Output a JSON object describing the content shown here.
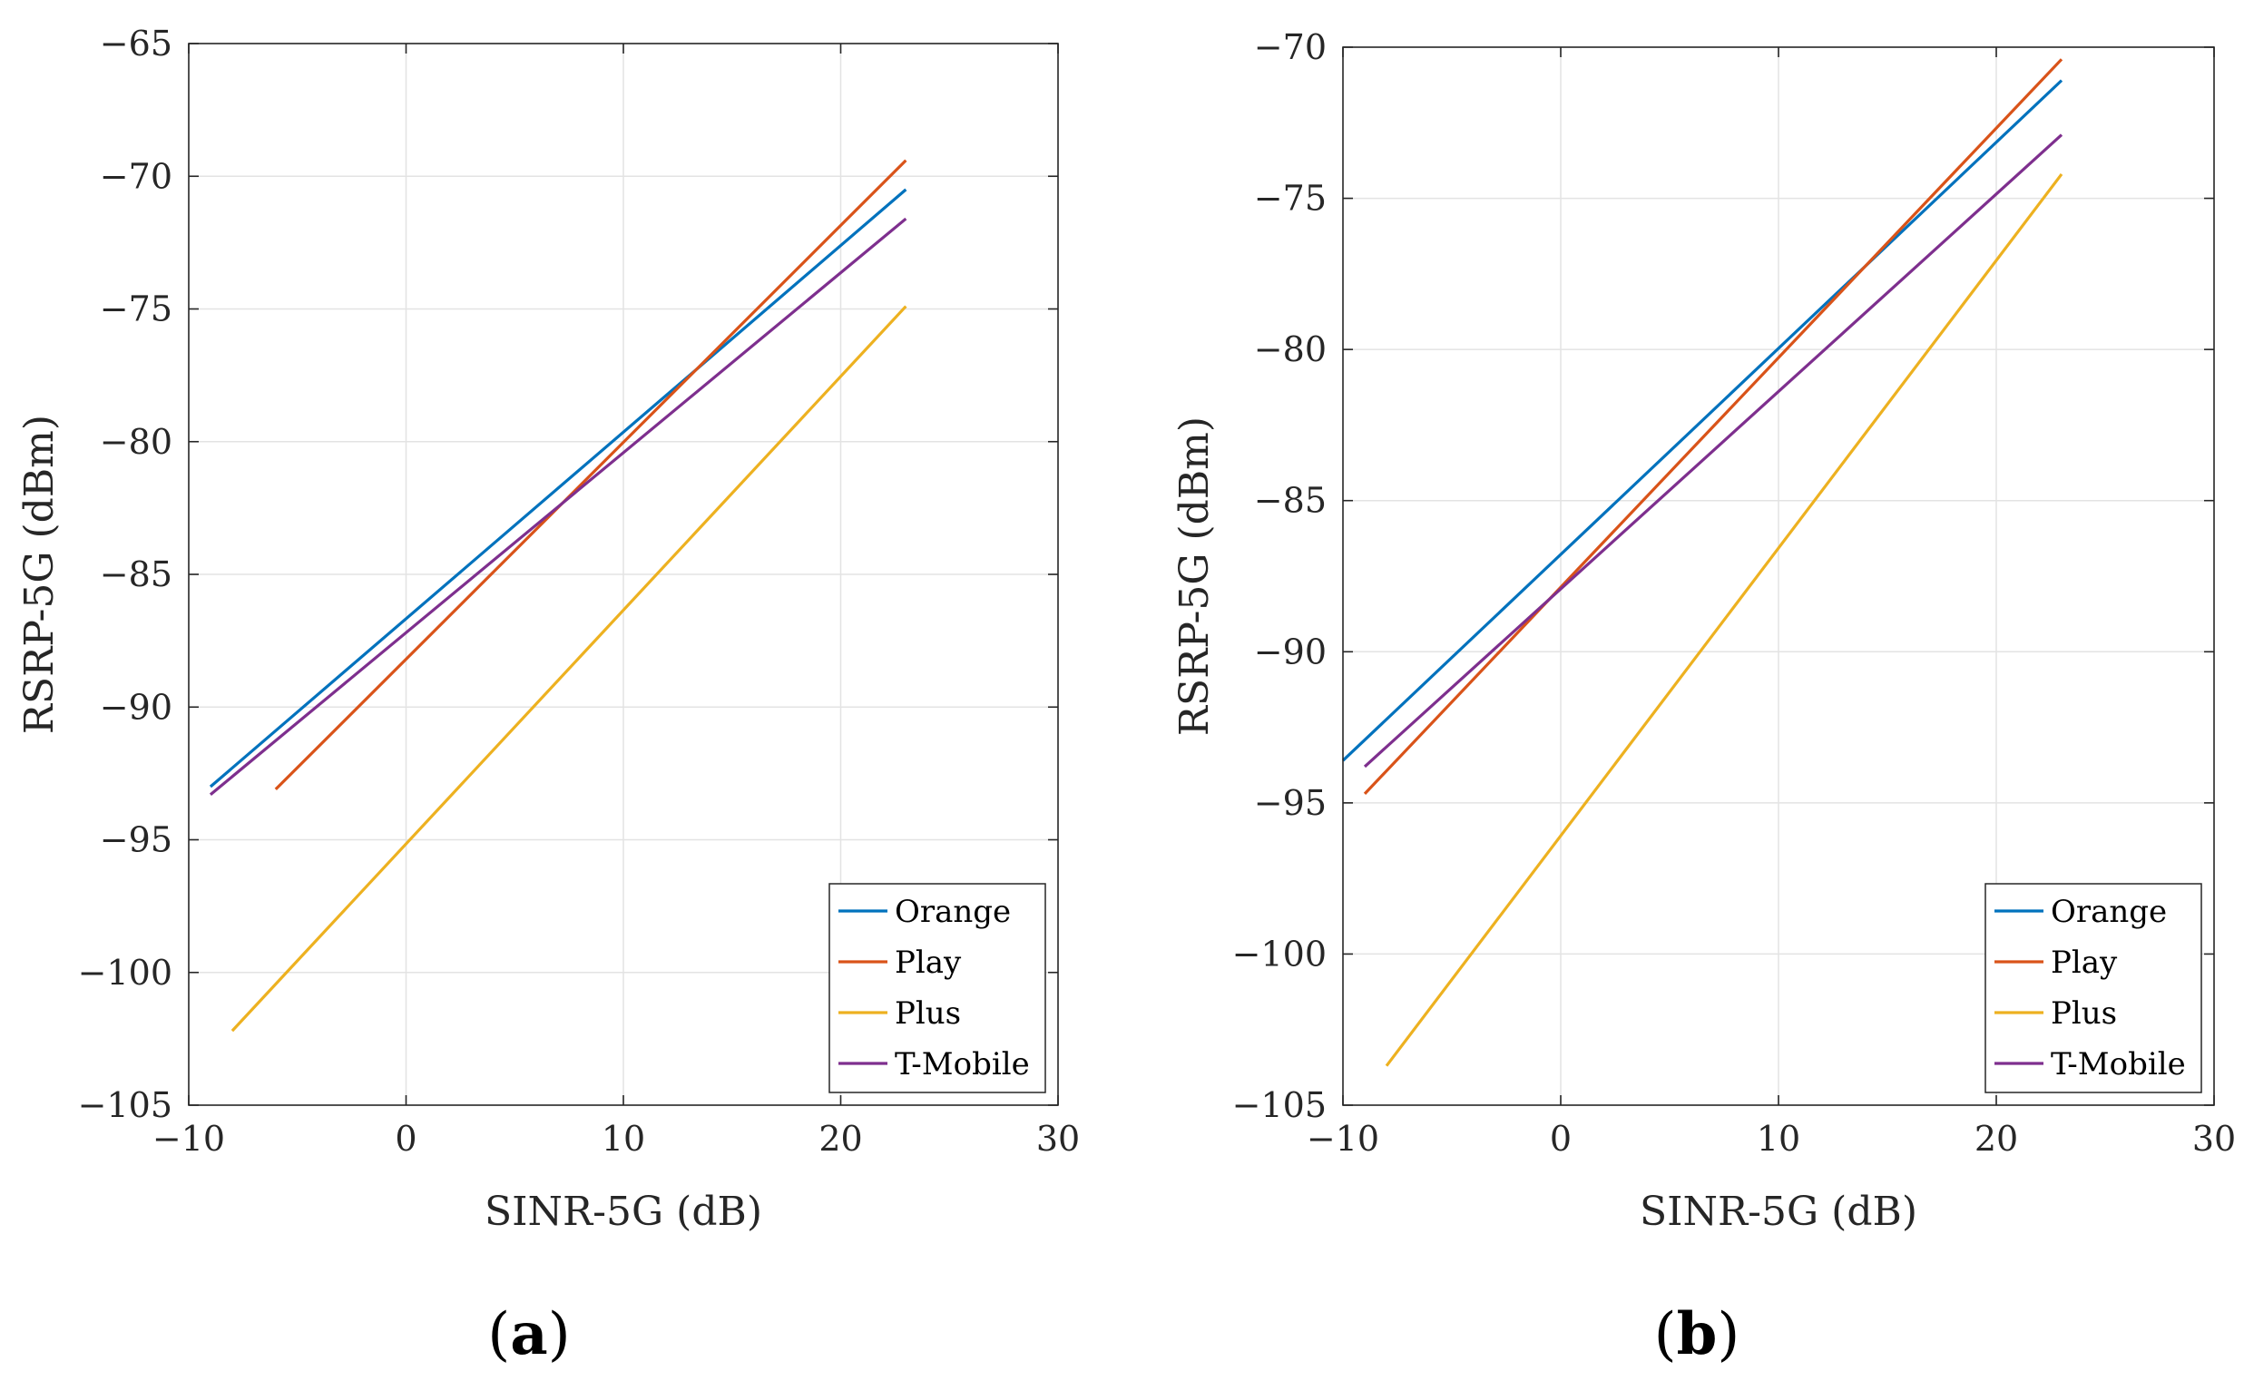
{
  "chart_data": [
    {
      "type": "line",
      "panel_label": {
        "open": "(",
        "letter": "a",
        "close": ")"
      },
      "xlabel": "SINR-5G  (dB)",
      "ylabel": "RSRP-5G  (dBm)",
      "xlim": [
        -10,
        30
      ],
      "ylim": [
        -105,
        -65
      ],
      "xticks": [
        -10,
        0,
        10,
        20,
        30
      ],
      "yticks": [
        -105,
        -100,
        -95,
        -90,
        -85,
        -80,
        -75,
        -70,
        -65
      ],
      "grid": true,
      "legend_position": "bottom-right",
      "series": [
        {
          "name": "Orange",
          "color": "#0072BD",
          "x": [
            -9,
            23
          ],
          "y": [
            -93.0,
            -70.5
          ]
        },
        {
          "name": "Play",
          "color": "#D95319",
          "x": [
            -6,
            23
          ],
          "y": [
            -93.1,
            -69.4
          ]
        },
        {
          "name": "Plus",
          "color": "#EDB120",
          "x": [
            -8,
            23
          ],
          "y": [
            -102.2,
            -74.9
          ]
        },
        {
          "name": "T-Mobile",
          "color": "#7E2F8E",
          "x": [
            -9,
            23
          ],
          "y": [
            -93.3,
            -71.6
          ]
        }
      ]
    },
    {
      "type": "line",
      "panel_label": {
        "open": "(",
        "letter": "b",
        "close": ")"
      },
      "xlabel": "SINR-5G  (dB)",
      "ylabel": "RSRP-5G  (dBm)",
      "xlim": [
        -10,
        30
      ],
      "ylim": [
        -105,
        -70
      ],
      "xticks": [
        -10,
        0,
        10,
        20,
        30
      ],
      "yticks": [
        -105,
        -100,
        -95,
        -90,
        -85,
        -80,
        -75,
        -70
      ],
      "grid": true,
      "legend_position": "bottom-right",
      "series": [
        {
          "name": "Orange",
          "color": "#0072BD",
          "x": [
            -10,
            23
          ],
          "y": [
            -93.6,
            -71.1
          ]
        },
        {
          "name": "Play",
          "color": "#D95319",
          "x": [
            -9,
            23
          ],
          "y": [
            -94.7,
            -70.4
          ]
        },
        {
          "name": "Plus",
          "color": "#EDB120",
          "x": [
            -8,
            23
          ],
          "y": [
            -103.7,
            -74.2
          ]
        },
        {
          "name": "T-Mobile",
          "color": "#7E2F8E",
          "x": [
            -9,
            23
          ],
          "y": [
            -93.8,
            -72.9
          ]
        }
      ]
    }
  ]
}
